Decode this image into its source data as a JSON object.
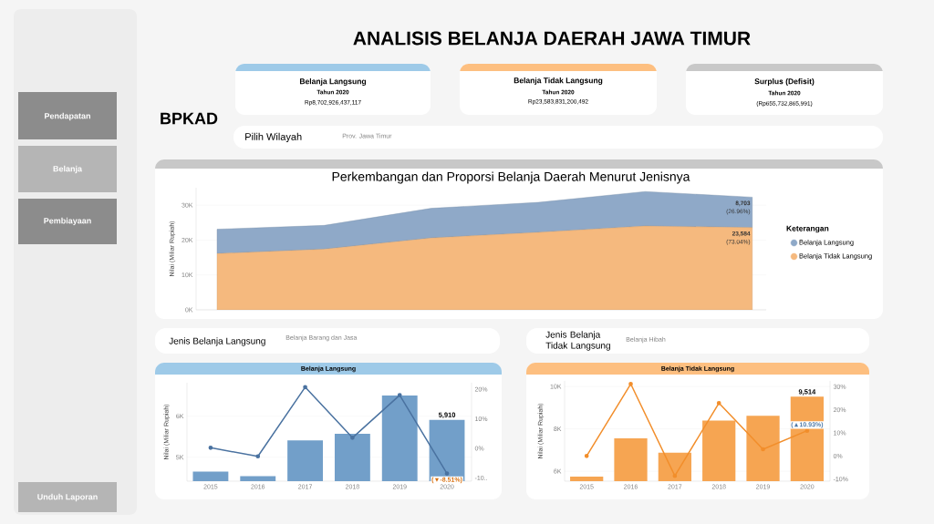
{
  "chart_data": [
    {
      "type": "other",
      "title": "ANALISIS BELANJA DAERAH JAWA TIMUR",
      "annotations": [
        "BPKAD",
        "Pendapatan",
        "Belanja",
        "Pembiayaan",
        "Unduh Laporan",
        "Belanja Langsung",
        "Tahun 2020",
        "Rp8,702,926,437,117",
        "Belanja Tidak Langsung",
        "Tahun 2020",
        "Rp23,583,831,200,492",
        "Surplus (Defisit)",
        "Tahun 2020",
        "(Rp655,732,865,991)",
        "Pilih Wilayah",
        "Prov. Jawa Timur"
      ]
    },
    {
      "type": "area",
      "title": "Perkembangan dan Proporsi Belanja Daerah Menurut Jenisnya",
      "ylabel": "Nilai (Miliar Rupiah)",
      "legend_title": "Keterangan",
      "legend": "right",
      "stacked": true,
      "grid": "y",
      "tick_labels": "y",
      "categories": [
        null,
        null,
        null,
        null,
        null,
        null
      ],
      "ylim": [
        0,
        35000
      ],
      "yticks": [
        {
          "value": 0,
          "label": "0K"
        },
        {
          "value": 10000,
          "label": "10K"
        },
        {
          "value": 20000,
          "label": "20K"
        },
        {
          "value": 30000,
          "label": "30K"
        }
      ],
      "series": [
        {
          "name": "Belanja Tidak Langsung",
          "color": "#f5b97e",
          "values": [
            16100,
            17400,
            20600,
            22200,
            24000,
            23584
          ],
          "value_labels": [
            null,
            null,
            null,
            null,
            null,
            "**23,584** (73.04%)"
          ]
        },
        {
          "name": "Belanja Langsung",
          "color": "#8fa9c8",
          "values": [
            7000,
            6800,
            8500,
            8600,
            9900,
            8703
          ],
          "value_labels": [
            null,
            null,
            null,
            null,
            null,
            "**8,703** (26.96%)"
          ]
        }
      ]
    },
    {
      "type": "bar",
      "title": "Belanja Langsung",
      "ylabel": "Nilai (Miliar Rupiah)",
      "grid": "y",
      "annotations": [
        "Jenis Belanja Langsung",
        "Belanja Barang dan Jasa"
      ],
      "categories": [
        "2015",
        "2016",
        "2017",
        "2018",
        "2019",
        "2020"
      ],
      "ylim": [
        4420,
        6810
      ],
      "yticks": [
        {
          "value": 5000,
          "label": "5K"
        },
        {
          "value": 6000,
          "label": "6K"
        }
      ],
      "y2lim": [
        -11.1,
        22.2
      ],
      "y2ticks": [
        {
          "value": -10,
          "label": "-10.."
        },
        {
          "value": 0,
          "label": "0%"
        },
        {
          "value": 10,
          "label": "10%"
        },
        {
          "value": 20,
          "label": "20%"
        }
      ],
      "series": [
        {
          "type": "bar",
          "color": "#729fc9",
          "values": [
            4650,
            4540,
            5410,
            5570,
            6500,
            5910
          ],
          "value_labels": [
            null,
            null,
            null,
            null,
            null,
            "5,910"
          ]
        },
        {
          "type": "line",
          "axis": "y2",
          "color": "#4a72a0",
          "marker": "circle",
          "values": [
            0.2,
            -2.7,
            20.7,
            3.6,
            18.0,
            -8.51
          ],
          "value_labels": [
            null,
            null,
            null,
            null,
            null,
            "(▼-8.51%)"
          ]
        }
      ]
    },
    {
      "type": "bar",
      "title": "Belanja Tidak Langsung",
      "ylabel": "Nilai (Miliar Rupiah)",
      "grid": "y",
      "annotations": [
        "Jenis Belanja Tidak Langsung",
        "Belanja Hibah"
      ],
      "categories": [
        "2015",
        "2016",
        "2017",
        "2018",
        "2019",
        "2020"
      ],
      "ylim": [
        5530,
        10260
      ],
      "yticks": [
        {
          "value": 6000,
          "label": "6K"
        },
        {
          "value": 8000,
          "label": "8K"
        },
        {
          "value": 10000,
          "label": "10K"
        }
      ],
      "y2lim": [
        -10.9,
        32.5
      ],
      "y2ticks": [
        {
          "value": -10,
          "label": "-10%"
        },
        {
          "value": 0,
          "label": "0%"
        },
        {
          "value": 10,
          "label": "10%"
        },
        {
          "value": 20,
          "label": "20%"
        },
        {
          "value": 30,
          "label": "30%"
        }
      ],
      "series": [
        {
          "type": "bar",
          "color": "#f6a552",
          "values": [
            5740,
            7550,
            6870,
            8390,
            8620,
            9514
          ],
          "value_labels": [
            null,
            null,
            null,
            null,
            null,
            "9,514"
          ]
        },
        {
          "type": "line",
          "axis": "y2",
          "color": "#f28e2b",
          "marker": "circle",
          "values": [
            0,
            31.2,
            -8.6,
            22.9,
            2.9,
            10.93
          ],
          "value_labels": [
            null,
            null,
            null,
            null,
            null,
            "(▲10.93%)"
          ]
        }
      ]
    }
  ]
}
